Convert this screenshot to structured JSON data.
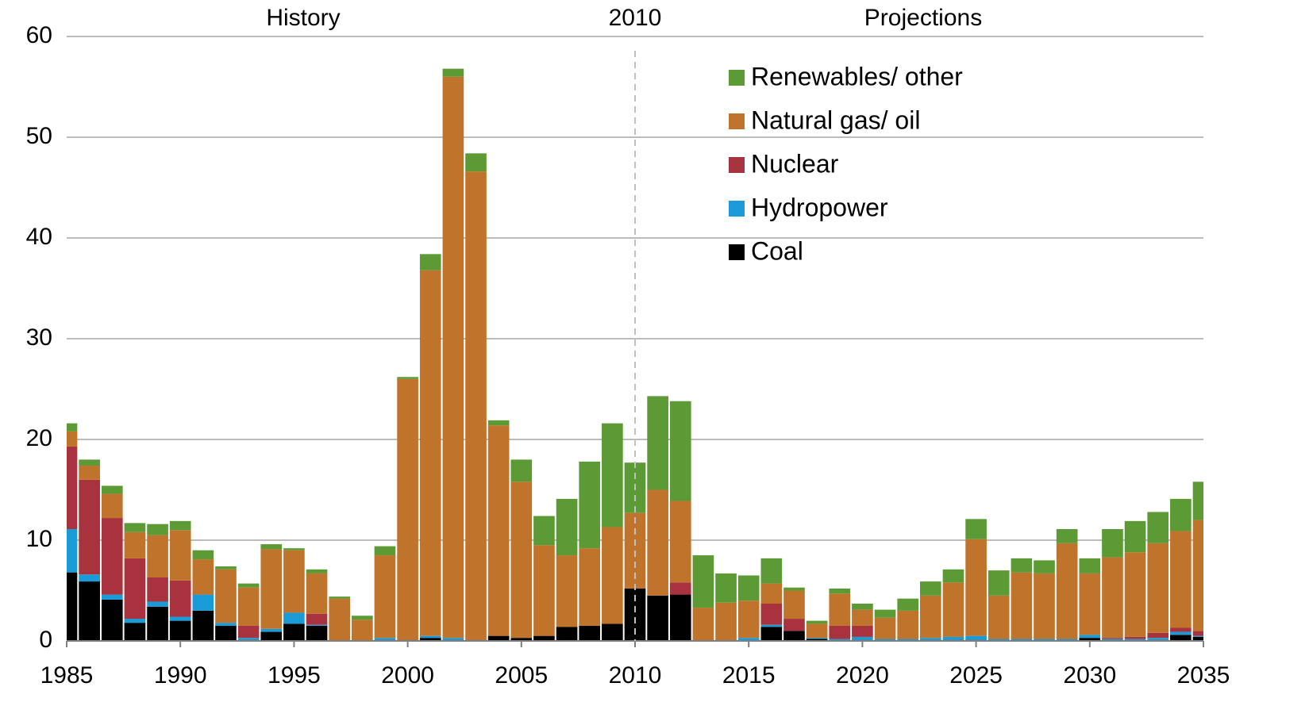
{
  "chart_data": {
    "type": "stacked_bar",
    "annotations": {
      "history": "History",
      "divider": {
        "label": "2010",
        "x": 2010
      },
      "projections": "Projections"
    },
    "x": [
      1985,
      1986,
      1987,
      1988,
      1989,
      1990,
      1991,
      1992,
      1993,
      1994,
      1995,
      1996,
      1997,
      1998,
      1999,
      2000,
      2001,
      2002,
      2003,
      2004,
      2005,
      2006,
      2007,
      2008,
      2009,
      2010,
      2011,
      2012,
      2013,
      2014,
      2015,
      2016,
      2017,
      2018,
      2019,
      2020,
      2021,
      2022,
      2023,
      2024,
      2025,
      2026,
      2027,
      2028,
      2029,
      2030,
      2031,
      2032,
      2033,
      2034,
      2035
    ],
    "series": [
      {
        "name": "Coal",
        "color": "#000000",
        "values": [
          6.8,
          5.9,
          4.1,
          1.8,
          3.4,
          2.0,
          3.0,
          1.5,
          0.1,
          0.9,
          1.7,
          1.5,
          0,
          0,
          0.1,
          0.1,
          0.3,
          0.1,
          0.1,
          0.5,
          0.3,
          0.5,
          1.4,
          1.5,
          1.7,
          5.2,
          4.5,
          4.6,
          0,
          0,
          0,
          1.4,
          1.0,
          0.2,
          0.1,
          0.1,
          0.1,
          0.1,
          0.1,
          0.1,
          0.1,
          0.1,
          0.1,
          0.1,
          0.1,
          0.3,
          0.1,
          0.1,
          0.1,
          0.6,
          0.4
        ]
      },
      {
        "name": "Hydropower",
        "color": "#1a9ad6",
        "values": [
          4.3,
          0.7,
          0.5,
          0.4,
          0.5,
          0.4,
          1.6,
          0.3,
          0.2,
          0.3,
          1.1,
          0.1,
          0,
          0,
          0.2,
          0,
          0.2,
          0.2,
          0,
          0,
          0,
          0,
          0,
          0,
          0,
          0,
          0,
          0,
          0,
          0,
          0.3,
          0.2,
          0,
          0.1,
          0.1,
          0.3,
          0.1,
          0.1,
          0.2,
          0.3,
          0.4,
          0.1,
          0.1,
          0.1,
          0.1,
          0.3,
          0.1,
          0.1,
          0.2,
          0.3,
          0.1
        ]
      },
      {
        "name": "Nuclear",
        "color": "#a8323e",
        "values": [
          8.2,
          9.4,
          7.6,
          6.0,
          2.4,
          3.6,
          0,
          0,
          1.2,
          0,
          0,
          1.1,
          0,
          0,
          0,
          0,
          0,
          0,
          0,
          0,
          0,
          0,
          0,
          0,
          0,
          0,
          0,
          1.2,
          0,
          0,
          0,
          2.1,
          1.2,
          0,
          1.3,
          1.1,
          0,
          0,
          0,
          0,
          0,
          0,
          0,
          0,
          0,
          0,
          0.1,
          0.2,
          0.5,
          0.4,
          0.5
        ]
      },
      {
        "name": "Natural gas/ oil",
        "color": "#c0732b",
        "values": [
          1.5,
          1.4,
          2.4,
          2.6,
          4.2,
          5.0,
          3.5,
          5.3,
          3.8,
          7.9,
          6.2,
          4.0,
          4.2,
          2.1,
          8.2,
          25.9,
          36.3,
          55.7,
          46.5,
          20.9,
          15.5,
          9.0,
          7.1,
          7.7,
          9.6,
          7.5,
          10.5,
          8.1,
          3.3,
          3.8,
          3.7,
          2.0,
          2.8,
          1.4,
          3.2,
          1.6,
          2.1,
          2.8,
          4.2,
          5.4,
          9.6,
          4.3,
          6.6,
          6.5,
          9.5,
          6.1,
          8.0,
          8.4,
          8.9,
          9.6,
          11.0
        ]
      },
      {
        "name": "Renewables/ other",
        "color": "#5b9a35",
        "values": [
          0.8,
          0.6,
          0.8,
          0.9,
          1.1,
          0.9,
          0.9,
          0.3,
          0.4,
          0.5,
          0.2,
          0.4,
          0.2,
          0.4,
          0.9,
          0.2,
          1.6,
          0.8,
          1.8,
          0.5,
          2.2,
          2.9,
          5.6,
          8.6,
          10.3,
          5.0,
          9.3,
          9.9,
          5.2,
          2.9,
          2.5,
          2.5,
          0.3,
          0.3,
          0.5,
          0.6,
          0.8,
          1.2,
          1.4,
          1.3,
          2.0,
          2.5,
          1.4,
          1.3,
          1.4,
          1.5,
          2.8,
          3.1,
          3.1,
          3.2,
          3.8
        ]
      }
    ],
    "xlim": [
      1985,
      2035
    ],
    "xticks": [
      1985,
      1990,
      1995,
      2000,
      2005,
      2010,
      2015,
      2020,
      2025,
      2030,
      2035
    ],
    "ylim": [
      0,
      60
    ],
    "yticks": [
      0,
      10,
      20,
      30,
      40,
      50,
      60
    ],
    "grid": true,
    "legend_position": "top-center"
  }
}
